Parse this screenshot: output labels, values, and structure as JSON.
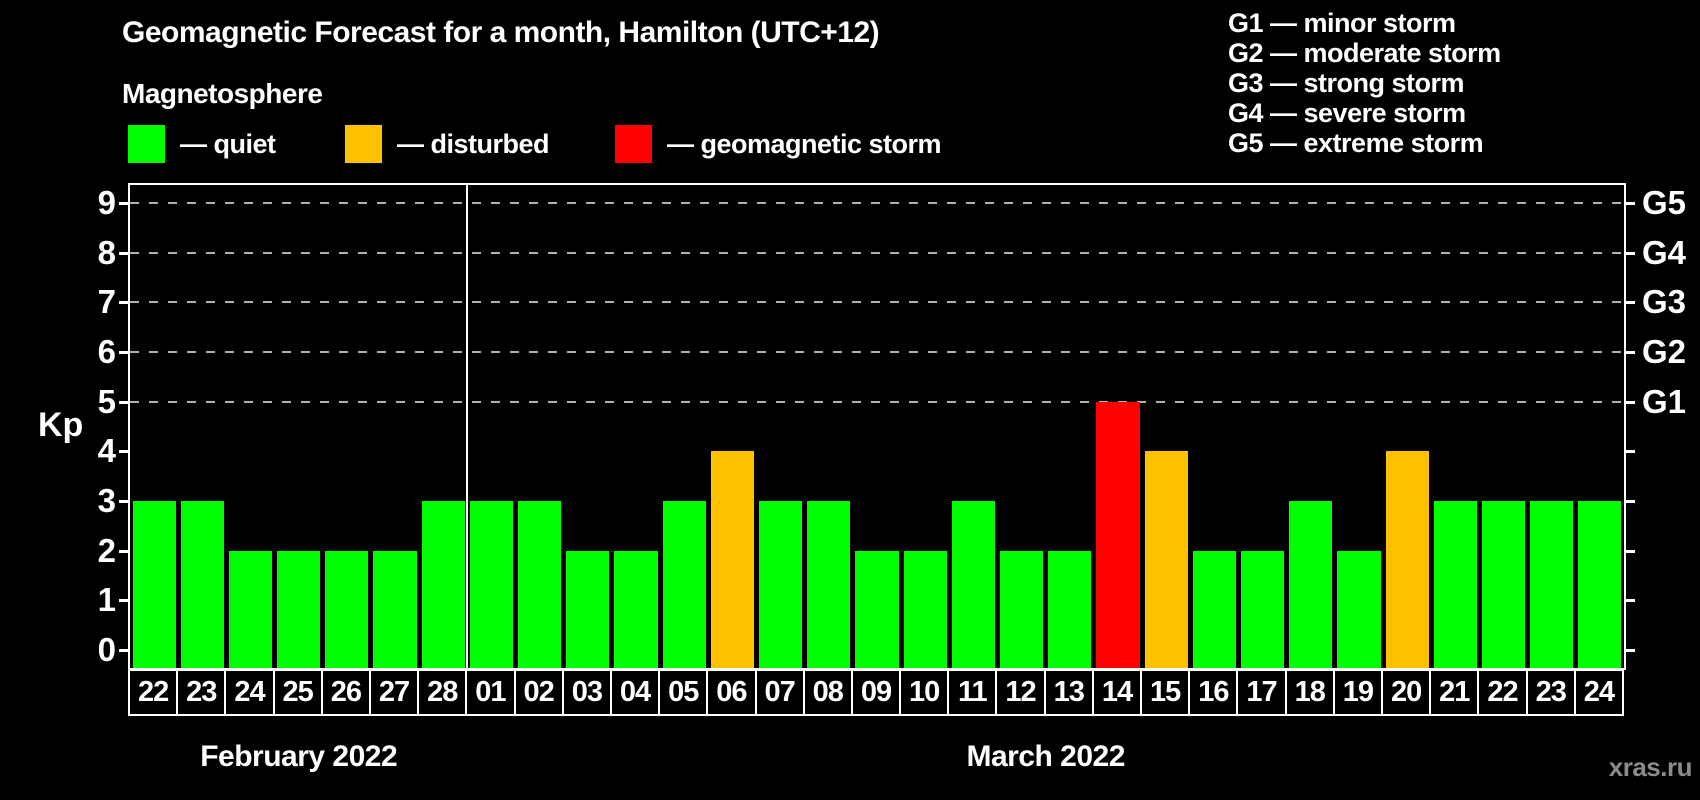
{
  "header": {
    "title": "Geomagnetic Forecast for a month, Hamilton (UTC+12)"
  },
  "legend": {
    "title": "Magnetosphere",
    "items": [
      {
        "key": "quiet",
        "label": "— quiet",
        "color": "#00ff00"
      },
      {
        "key": "disturbed",
        "label": "— disturbed",
        "color": "#ffc000"
      },
      {
        "key": "storm",
        "label": "— geomagnetic storm",
        "color": "#ff0000"
      }
    ]
  },
  "g_legend": {
    "items": [
      {
        "label": "G1 — minor storm"
      },
      {
        "label": "G2 — moderate storm"
      },
      {
        "label": "G3 — strong storm"
      },
      {
        "label": "G4 — severe storm"
      },
      {
        "label": "G5 — extreme storm"
      }
    ]
  },
  "watermark": "xras.ru",
  "chart_data": {
    "type": "bar",
    "title": "Geomagnetic Forecast for a month, Hamilton (UTC+12)",
    "ylabel": "Kp",
    "ylim": [
      0,
      9
    ],
    "y_ticks": [
      0,
      1,
      2,
      3,
      4,
      5,
      6,
      7,
      8,
      9
    ],
    "gridlines_at": [
      5,
      6,
      7,
      8,
      9
    ],
    "grid": "dashed, only at Kp 5-9",
    "legend_position": "top",
    "right_axis_labels": [
      {
        "kp": 5,
        "label": "G1"
      },
      {
        "kp": 6,
        "label": "G2"
      },
      {
        "kp": 7,
        "label": "G3"
      },
      {
        "kp": 8,
        "label": "G4"
      },
      {
        "kp": 9,
        "label": "G5"
      }
    ],
    "categories": [
      "22",
      "23",
      "24",
      "25",
      "26",
      "27",
      "28",
      "01",
      "02",
      "03",
      "04",
      "05",
      "06",
      "07",
      "08",
      "09",
      "10",
      "11",
      "12",
      "13",
      "14",
      "15",
      "16",
      "17",
      "18",
      "19",
      "20",
      "21",
      "22",
      "23",
      "24"
    ],
    "values": [
      3,
      3,
      2,
      2,
      2,
      2,
      3,
      3,
      3,
      2,
      2,
      3,
      4,
      3,
      3,
      2,
      2,
      3,
      2,
      2,
      5,
      4,
      2,
      2,
      3,
      2,
      4,
      3,
      3,
      3,
      3
    ],
    "statuses": [
      "quiet",
      "quiet",
      "quiet",
      "quiet",
      "quiet",
      "quiet",
      "quiet",
      "quiet",
      "quiet",
      "quiet",
      "quiet",
      "quiet",
      "disturbed",
      "quiet",
      "quiet",
      "quiet",
      "quiet",
      "quiet",
      "quiet",
      "quiet",
      "storm",
      "disturbed",
      "quiet",
      "quiet",
      "quiet",
      "quiet",
      "disturbed",
      "quiet",
      "quiet",
      "quiet",
      "quiet"
    ],
    "colors": {
      "quiet": "#00ff00",
      "disturbed": "#ffc000",
      "storm": "#ff0000"
    },
    "months": [
      {
        "label": "February 2022",
        "start": 0,
        "count": 7
      },
      {
        "label": "March 2022",
        "start": 7,
        "count": 24
      }
    ]
  }
}
